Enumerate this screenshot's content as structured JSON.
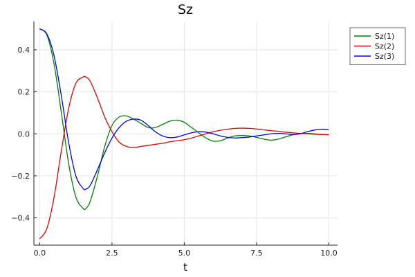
{
  "chart_data": {
    "type": "line",
    "title": "Sz",
    "xlabel": "t",
    "ylabel": "",
    "xlim": [
      -0.2,
      10.3
    ],
    "ylim": [
      -0.53,
      0.535
    ],
    "xticks": [
      0.0,
      2.5,
      5.0,
      7.5,
      10.0
    ],
    "xtick_labels": [
      "0.0",
      "2.5",
      "5.0",
      "7.5",
      "10.0"
    ],
    "yticks": [
      -0.4,
      -0.2,
      0.0,
      0.2,
      0.4
    ],
    "ytick_labels": [
      "−0.4",
      "−0.2",
      "0.0",
      "0.2",
      "0.4"
    ],
    "grid": true,
    "legend_position": "top-right",
    "series": [
      {
        "name": "Sz(1)",
        "color": "#008000",
        "x": [
          0.0,
          0.25,
          0.5,
          0.75,
          1.0,
          1.25,
          1.5,
          1.6,
          1.75,
          2.0,
          2.25,
          2.5,
          2.75,
          3.0,
          3.25,
          3.5,
          3.75,
          4.0,
          4.25,
          4.5,
          4.75,
          5.0,
          5.25,
          5.5,
          5.75,
          6.0,
          6.25,
          6.5,
          6.75,
          7.0,
          7.25,
          7.5,
          7.75,
          8.0,
          8.25,
          8.5,
          8.75,
          9.0,
          9.25,
          9.5,
          9.75,
          10.0
        ],
        "y": [
          0.5,
          0.47,
          0.33,
          0.1,
          -0.14,
          -0.3,
          -0.355,
          -0.355,
          -0.32,
          -0.2,
          -0.06,
          0.04,
          0.08,
          0.085,
          0.07,
          0.05,
          0.03,
          0.03,
          0.045,
          0.06,
          0.065,
          0.055,
          0.03,
          0.005,
          -0.02,
          -0.035,
          -0.033,
          -0.02,
          -0.01,
          -0.008,
          -0.01,
          -0.017,
          -0.025,
          -0.03,
          -0.025,
          -0.015,
          -0.005,
          0.0,
          0.002,
          0.0,
          -0.003,
          -0.005
        ]
      },
      {
        "name": "Sz(2)",
        "color": "#e00000",
        "x": [
          0.0,
          0.25,
          0.5,
          0.75,
          1.0,
          1.25,
          1.5,
          1.6,
          1.75,
          2.0,
          2.25,
          2.5,
          2.75,
          3.0,
          3.25,
          3.5,
          3.75,
          4.0,
          4.25,
          4.5,
          4.75,
          5.0,
          5.25,
          5.5,
          5.75,
          6.0,
          6.25,
          6.5,
          6.75,
          7.0,
          7.25,
          7.5,
          7.75,
          8.0,
          8.25,
          8.5,
          8.75,
          9.0,
          9.25,
          9.5,
          9.75,
          10.0
        ],
        "y": [
          -0.5,
          -0.45,
          -0.3,
          -0.08,
          0.12,
          0.24,
          0.27,
          0.27,
          0.25,
          0.17,
          0.08,
          0.01,
          -0.04,
          -0.06,
          -0.065,
          -0.06,
          -0.055,
          -0.05,
          -0.045,
          -0.038,
          -0.033,
          -0.028,
          -0.02,
          -0.01,
          0.0,
          0.01,
          0.017,
          0.022,
          0.026,
          0.027,
          0.026,
          0.023,
          0.019,
          0.015,
          0.012,
          0.008,
          0.005,
          0.002,
          0.0,
          -0.002,
          -0.003,
          -0.004
        ]
      },
      {
        "name": "Sz(3)",
        "color": "#0000ee",
        "x": [
          0.0,
          0.25,
          0.5,
          0.75,
          1.0,
          1.25,
          1.5,
          1.6,
          1.75,
          2.0,
          2.25,
          2.5,
          2.75,
          3.0,
          3.25,
          3.5,
          3.75,
          4.0,
          4.25,
          4.5,
          4.75,
          5.0,
          5.25,
          5.5,
          5.75,
          6.0,
          6.25,
          6.5,
          6.75,
          7.0,
          7.25,
          7.5,
          7.75,
          8.0,
          8.25,
          8.5,
          8.75,
          9.0,
          9.25,
          9.5,
          9.75,
          10.0
        ],
        "y": [
          0.5,
          0.475,
          0.37,
          0.18,
          -0.04,
          -0.2,
          -0.26,
          -0.263,
          -0.245,
          -0.17,
          -0.09,
          -0.02,
          0.03,
          0.06,
          0.07,
          0.065,
          0.04,
          0.01,
          -0.01,
          -0.018,
          -0.015,
          -0.005,
          0.005,
          0.01,
          0.008,
          0.0,
          -0.01,
          -0.017,
          -0.02,
          -0.018,
          -0.015,
          -0.01,
          -0.005,
          0.0,
          0.002,
          0.0,
          -0.003,
          0.0,
          0.01,
          0.018,
          0.022,
          0.02
        ]
      }
    ]
  }
}
